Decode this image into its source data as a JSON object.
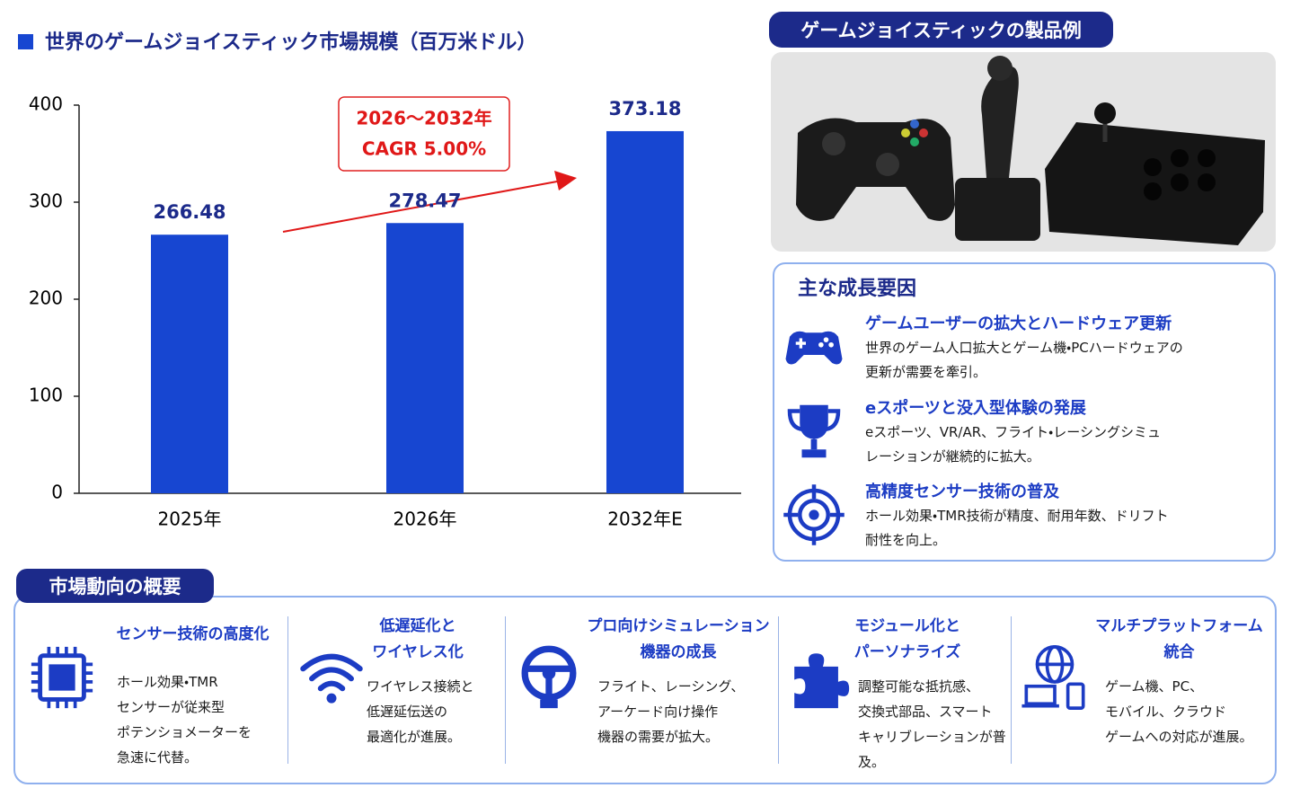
{
  "chart_data": {
    "type": "bar",
    "title": "世界のゲームジョイスティック市場規模（百万米ドル）",
    "categories": [
      "2025年",
      "2026年",
      "2032年E"
    ],
    "values": [
      266.48,
      278.47,
      373.18
    ],
    "color": "#1746d1",
    "ylim": [
      0,
      400
    ],
    "yticks": [
      0,
      100,
      200,
      300,
      400
    ],
    "grid": false,
    "annotation": [
      "2026～2032年",
      "CAGR 5.00%"
    ]
  },
  "product_panel": {
    "title": "ゲームジョイスティックの製品例"
  },
  "growth_factors": {
    "title": "主な成長要因",
    "items": [
      {
        "title": "ゲームユーザーの拡大とハードウェア更新",
        "text": "世界のゲーム人口拡大とゲーム機・PCハードウェアの\n更新が需要を牽引。"
      },
      {
        "title": "eスポーツと没入型体験の発展",
        "text": "eスポーツ、VR/AR、フライト・レーシングシミュ\nレーションが継続的に拡大。"
      },
      {
        "title": "高精度センサー技術の普及",
        "text": "ホール効果・TMR技術が精度、耐用年数、ドリフト\n耐性を向上。"
      }
    ]
  },
  "market_trends": {
    "title": "市場動向の概要",
    "items": [
      {
        "title": "センサー技術の高度化",
        "text": "ホール効果・TMR\nセンサーが従来型\nポテンショメーターを\n急速に代替。"
      },
      {
        "title": "低遅延化と\nワイヤレス化",
        "text": "ワイヤレス接続と\n低遅延伝送の\n最適化が進展。"
      },
      {
        "title": "プロ向けシミュレーション\n機器の成長",
        "text": "フライト、レーシング、\nアーケード向け操作\n機器の需要が拡大。"
      },
      {
        "title": "モジュール化と\nパーソナライズ",
        "text": "調整可能な抵抗感、\n交換式部品、スマート\nキャリブレーションが普及。"
      },
      {
        "title": "マルチプラットフォーム\n統合",
        "text": "ゲーム機、PC、\nモバイル、クラウド\nゲームへの対応が進展。"
      }
    ]
  }
}
